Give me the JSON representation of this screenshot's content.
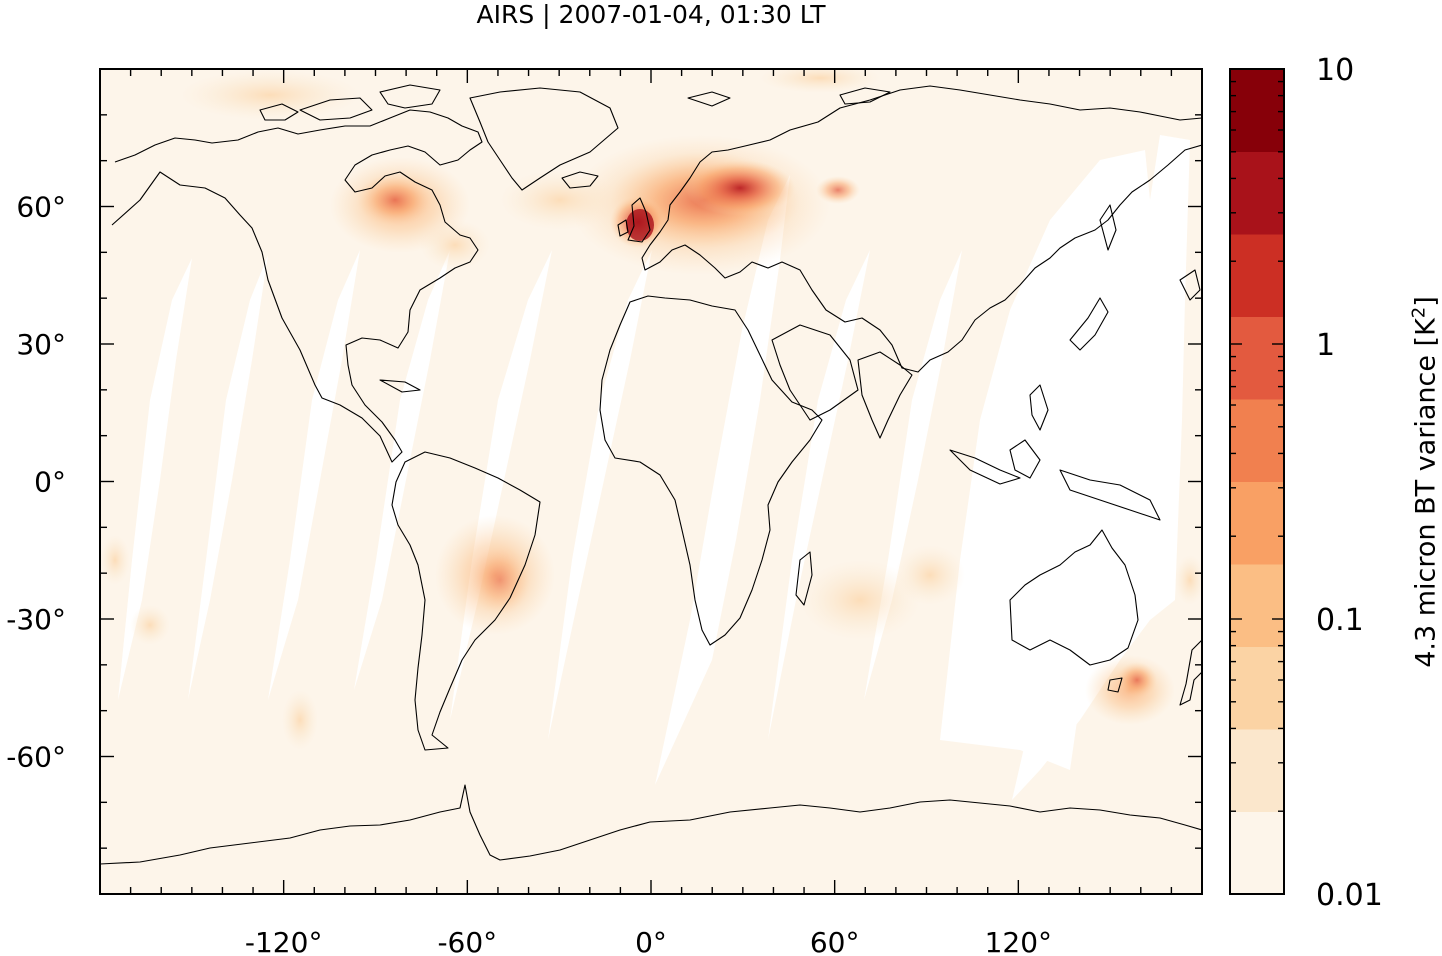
{
  "title": "AIRS | 2007-01-04, 01:30 LT",
  "map": {
    "projection": "equirectangular",
    "lon_range": [
      -180,
      180
    ],
    "lat_range": [
      -90,
      90
    ],
    "x_ticks": [
      {
        "value": -120,
        "label": "-120°"
      },
      {
        "value": -60,
        "label": "-60°"
      },
      {
        "value": 0,
        "label": "0°"
      },
      {
        "value": 60,
        "label": "60°"
      },
      {
        "value": 120,
        "label": "120°"
      }
    ],
    "y_ticks": [
      {
        "value": 60,
        "label": "60°"
      },
      {
        "value": 30,
        "label": "30°"
      },
      {
        "value": 0,
        "label": "0°"
      },
      {
        "value": -30,
        "label": "-30°"
      },
      {
        "value": -60,
        "label": "-60°"
      }
    ],
    "background_color": "#fdf5ea",
    "hotspots": [
      {
        "region": "Europe / UK",
        "lon": 25,
        "lat": 56,
        "level": 3.0
      },
      {
        "region": "Hudson Bay",
        "lon": -82,
        "lat": 57,
        "level": 1.5
      },
      {
        "region": "South America",
        "lon": -50,
        "lat": -20,
        "level": 0.6
      },
      {
        "region": "SE Australia",
        "lon": 145,
        "lat": -40,
        "level": 0.5
      }
    ]
  },
  "colorbar": {
    "label": "4.3 micron BT variance [K",
    "label_sup": "2",
    "label_end": "]",
    "scale": "log",
    "range": [
      0.01,
      10
    ],
    "tick_labels": [
      "10",
      "1",
      "0.1",
      "0.01"
    ],
    "colors": [
      "#fdf5ea",
      "#fbe7cc",
      "#fbd3a4",
      "#fbbe84",
      "#f9a064",
      "#f1804f",
      "#e35a3f",
      "#cc2f24",
      "#a9121a",
      "#870009"
    ]
  }
}
